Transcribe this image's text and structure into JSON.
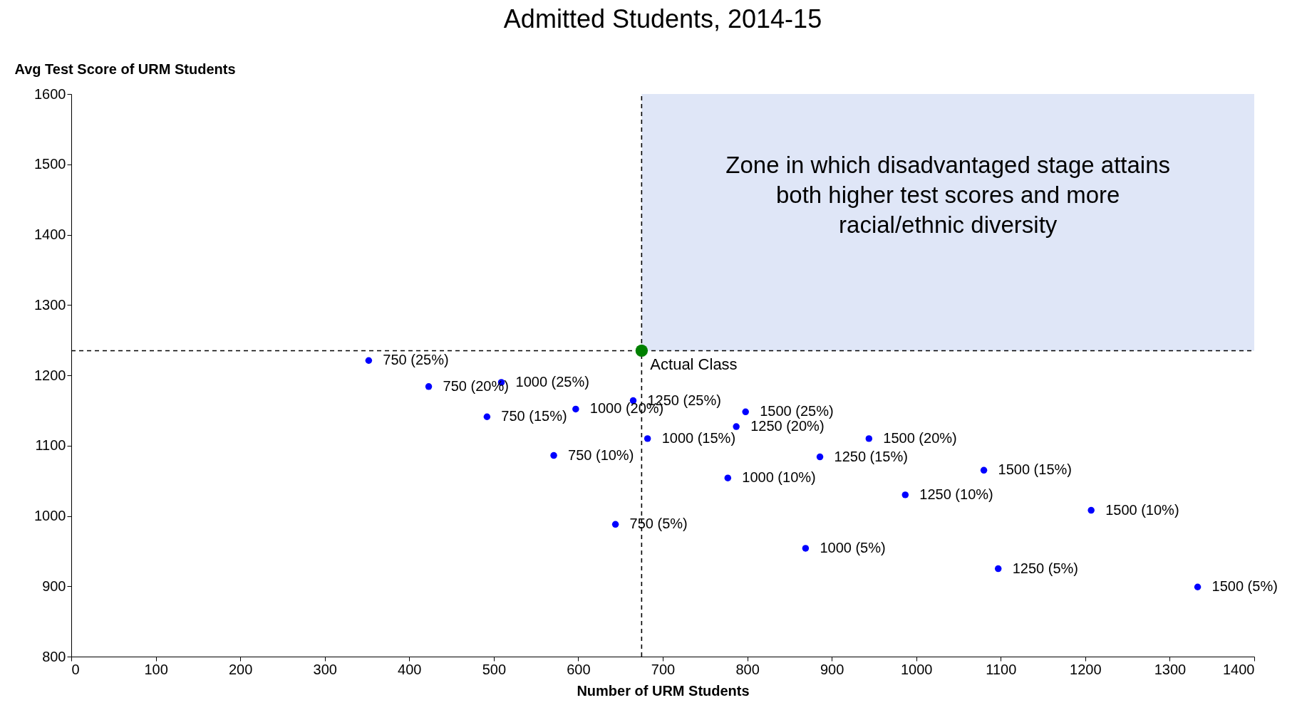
{
  "chart_data": {
    "type": "scatter",
    "title": "Admitted Students, 2014-15",
    "xlabel": "Number of URM Students",
    "ylabel": "Avg Test Score of URM Students",
    "xlim": [
      0,
      1400
    ],
    "xticks": [
      0,
      100,
      200,
      300,
      400,
      500,
      600,
      700,
      800,
      900,
      1000,
      1100,
      1200,
      1300,
      1400
    ],
    "ylim": [
      800,
      1600
    ],
    "yticks": [
      800,
      900,
      1000,
      1100,
      1200,
      1300,
      1400,
      1500,
      1600
    ],
    "grid": false,
    "marker": "circle",
    "series": [
      {
        "color": "#0000ff",
        "x": [
          352,
          423,
          509,
          492,
          597,
          665,
          798,
          787,
          682,
          944,
          571,
          886,
          777,
          1080,
          987,
          1207,
          644,
          869,
          1097,
          1333
        ],
        "values": [
          1221,
          1184,
          1190,
          1141,
          1152,
          1164,
          1148,
          1127,
          1110,
          1110,
          1086,
          1084,
          1054,
          1065,
          1030,
          1008,
          988,
          954,
          925,
          899
        ]
      },
      {
        "name": "Actual Class",
        "color": "#008000",
        "x": [
          675
        ],
        "values": [
          1235
        ]
      }
    ],
    "ref_lines": [
      {
        "axis": "x",
        "value": 675,
        "line_style": "dashed",
        "color": "#000000"
      },
      {
        "axis": "y",
        "value": 1235,
        "line_style": "dashed",
        "color": "#000000"
      }
    ],
    "bands": [
      {
        "axis": "y",
        "from": 1235,
        "to": 1600,
        "color": "#c9d6f2",
        "label": "Zone in which disadvantaged stage attains both higher test scores and more racial/ethnic diversity"
      }
    ],
    "annotations": [
      {
        "text": "750 (25%)",
        "x": 352,
        "y": 1221
      },
      {
        "text": "750 (20%)",
        "x": 423,
        "y": 1184
      },
      {
        "text": "1000 (25%)",
        "x": 509,
        "y": 1190
      },
      {
        "text": "750 (15%)",
        "x": 492,
        "y": 1141
      },
      {
        "text": "1000 (20%)",
        "x": 597,
        "y": 1152
      },
      {
        "text": "1250 (25%)",
        "x": 665,
        "y": 1164
      },
      {
        "text": "1500 (25%)",
        "x": 798,
        "y": 1148
      },
      {
        "text": "1250 (20%)",
        "x": 787,
        "y": 1127
      },
      {
        "text": "1000 (15%)",
        "x": 682,
        "y": 1110
      },
      {
        "text": "1500 (20%)",
        "x": 944,
        "y": 1110
      },
      {
        "text": "750 (10%)",
        "x": 571,
        "y": 1086
      },
      {
        "text": "1250 (15%)",
        "x": 886,
        "y": 1084
      },
      {
        "text": "1000 (10%)",
        "x": 777,
        "y": 1054
      },
      {
        "text": "1500 (15%)",
        "x": 1080,
        "y": 1065
      },
      {
        "text": "1250 (10%)",
        "x": 987,
        "y": 1030
      },
      {
        "text": "1500 (10%)",
        "x": 1207,
        "y": 1008
      },
      {
        "text": "750 (5%)",
        "x": 644,
        "y": 988
      },
      {
        "text": "1000 (5%)",
        "x": 869,
        "y": 954
      },
      {
        "text": "1250 (5%)",
        "x": 1097,
        "y": 925
      },
      {
        "text": "1500 (5%)",
        "x": 1333,
        "y": 899
      }
    ]
  }
}
